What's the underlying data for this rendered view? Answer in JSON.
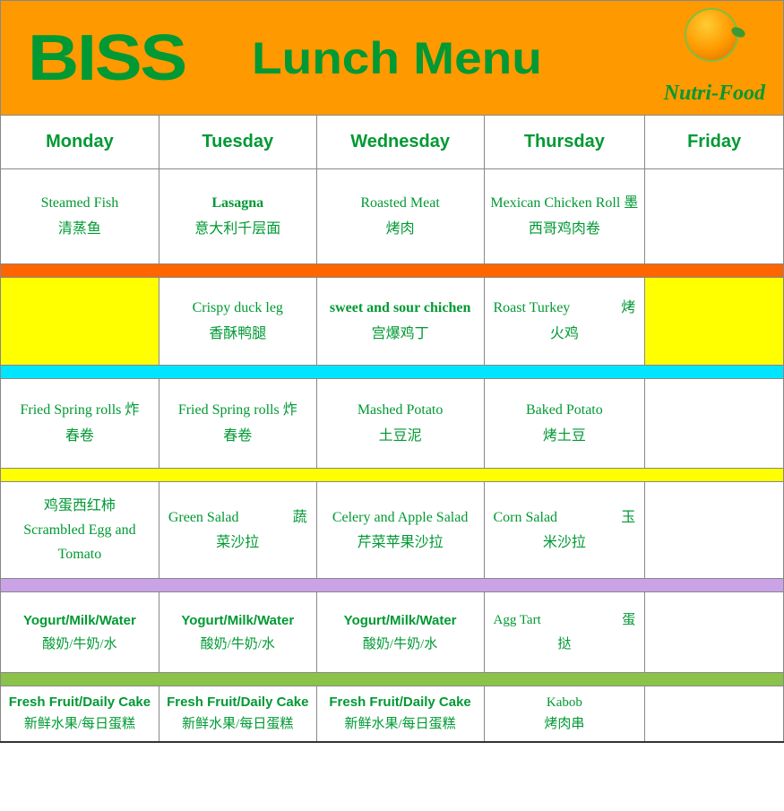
{
  "colors": {
    "banner_bg": "#ff9900",
    "text_green": "#009933",
    "sep_orange": "#ff6600",
    "sep_cyan": "#00e5ff",
    "sep_yellow": "#ffff00",
    "sep_purple": "#c9a3e6",
    "sep_green": "#8bc34a",
    "yellow_bg": "#ffff00",
    "border": "#888888",
    "white": "#ffffff"
  },
  "header": {
    "brand": "BISS",
    "title": "Lunch Menu",
    "sponsor": "Nutri-Food"
  },
  "days": [
    "Monday",
    "Tuesday",
    "Wednesday",
    "Thursday",
    "Friday"
  ],
  "rows": {
    "r1": {
      "mon": {
        "en": "Steamed Fish",
        "cn": "清蒸鱼"
      },
      "tue": {
        "en": "Lasagna",
        "cn": "意大利千层面",
        "bold": true
      },
      "wed": {
        "en": "Roasted Meat",
        "cn": "烤肉"
      },
      "thu": {
        "en": "Mexican Chicken Roll 墨",
        "cn": "西哥鸡肉卷"
      },
      "fri": {
        "en": "",
        "cn": ""
      }
    },
    "r2": {
      "mon": {
        "en": "",
        "cn": ""
      },
      "tue": {
        "en": "Crispy duck leg",
        "cn": "香酥鸭腿"
      },
      "wed": {
        "en": "sweet and sour chichen",
        "cn": "宫爆鸡丁",
        "bold": true
      },
      "thu": {
        "en_left": "Roast Turkey",
        "en_right": "烤",
        "cn": "火鸡"
      },
      "fri": {
        "en": "",
        "cn": ""
      }
    },
    "r3": {
      "mon": {
        "en": "Fried Spring rolls  炸",
        "cn": "春卷"
      },
      "tue": {
        "en": "Fried Spring rolls  炸",
        "cn": "春卷"
      },
      "wed": {
        "en": "Mashed Potato",
        "cn": "土豆泥"
      },
      "thu": {
        "en": "Baked Potato",
        "cn": "烤土豆"
      },
      "fri": {
        "en": "",
        "cn": ""
      }
    },
    "r4": {
      "mon": {
        "line1": "鸡蛋西红柿",
        "line2": "Scrambled Egg and",
        "line3": "Tomato"
      },
      "tue": {
        "en_left": "Green Salad",
        "en_right": "蔬",
        "cn": "菜沙拉"
      },
      "wed": {
        "en": "Celery and Apple Salad",
        "cn": "芹菜苹果沙拉"
      },
      "thu": {
        "en_left": "Corn Salad",
        "en_right": "玉",
        "cn": "米沙拉"
      },
      "fri": {
        "en": "",
        "cn": ""
      }
    },
    "r5": {
      "mon": {
        "en": "Yogurt/Milk/Water",
        "cn": "酸奶/牛奶/水",
        "bold": true
      },
      "tue": {
        "en": "Yogurt/Milk/Water",
        "cn": "酸奶/牛奶/水",
        "bold": true
      },
      "wed": {
        "en": "Yogurt/Milk/Water",
        "cn": "酸奶/牛奶/水",
        "bold": true
      },
      "thu": {
        "en_left": "Agg Tart",
        "en_right": "蛋",
        "cn": "挞"
      },
      "fri": {
        "en": "",
        "cn": ""
      }
    },
    "r6": {
      "mon": {
        "en": "Fresh Fruit/Daily Cake",
        "cn": "新鲜水果/每日蛋糕",
        "bold": true
      },
      "tue": {
        "en": "Fresh Fruit/Daily Cake",
        "cn": "新鲜水果/每日蛋糕",
        "bold": true
      },
      "wed": {
        "en": "Fresh Fruit/Daily Cake",
        "cn": "新鲜水果/每日蛋糕",
        "bold": true
      },
      "thu": {
        "en": "Kabob",
        "cn": "烤肉串"
      },
      "fri": {
        "en": "",
        "cn": ""
      }
    }
  }
}
